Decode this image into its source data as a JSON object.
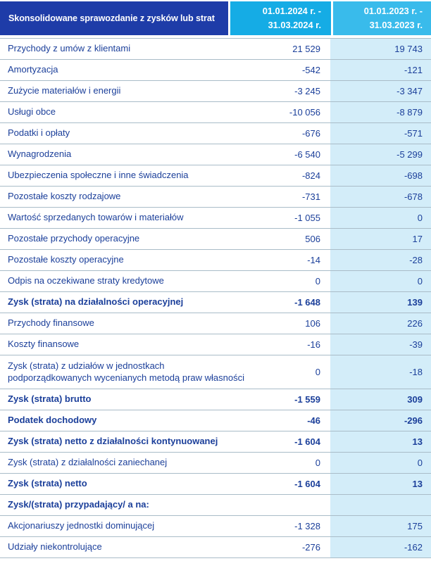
{
  "table": {
    "title": "Skonsolidowane sprawozdanie z  zysków lub strat",
    "columns": [
      {
        "name": "period-2024",
        "line1": "01.01.2024 r. -",
        "line2": "31.03.2024 r."
      },
      {
        "name": "period-2023",
        "line1": "01.01.2023 r. -",
        "line2": "31.03.2023 r."
      }
    ],
    "rows": [
      {
        "label": "Przychody z umów z klientami",
        "v2024": "21 529",
        "v2023": "19 743",
        "bold": false,
        "tall": false
      },
      {
        "label": "Amortyzacja",
        "v2024": "-542",
        "v2023": "-121",
        "bold": false,
        "tall": false
      },
      {
        "label": "Zużycie materiałów i energii",
        "v2024": "-3 245",
        "v2023": "-3 347",
        "bold": false,
        "tall": false
      },
      {
        "label": "Usługi obce",
        "v2024": "-10 056",
        "v2023": "-8 879",
        "bold": false,
        "tall": false
      },
      {
        "label": "Podatki i opłaty",
        "v2024": "-676",
        "v2023": "-571",
        "bold": false,
        "tall": false
      },
      {
        "label": "Wynagrodzenia",
        "v2024": "-6 540",
        "v2023": "-5 299",
        "bold": false,
        "tall": false
      },
      {
        "label": "Ubezpieczenia społeczne i inne świadczenia",
        "v2024": "-824",
        "v2023": "-698",
        "bold": false,
        "tall": false
      },
      {
        "label": "Pozostałe koszty rodzajowe",
        "v2024": "-731",
        "v2023": "-678",
        "bold": false,
        "tall": false
      },
      {
        "label": "Wartość sprzedanych towarów i materiałów",
        "v2024": "-1 055",
        "v2023": "0",
        "bold": false,
        "tall": false
      },
      {
        "label": "Pozostałe przychody operacyjne",
        "v2024": "506",
        "v2023": "17",
        "bold": false,
        "tall": false
      },
      {
        "label": "Pozostałe koszty operacyjne",
        "v2024": "-14",
        "v2023": "-28",
        "bold": false,
        "tall": false
      },
      {
        "label": "Odpis na oczekiwane straty kredytowe",
        "v2024": "0",
        "v2023": "0",
        "bold": false,
        "tall": false
      },
      {
        "label": "Zysk (strata) na działalności operacyjnej",
        "v2024": "-1 648",
        "v2023": "139",
        "bold": true,
        "tall": false
      },
      {
        "label": "Przychody finansowe",
        "v2024": "106",
        "v2023": "226",
        "bold": false,
        "tall": false
      },
      {
        "label": "Koszty finansowe",
        "v2024": "-16",
        "v2023": "-39",
        "bold": false,
        "tall": false
      },
      {
        "label": "Zysk (strata) z udziałów w jednostkach podporządkowanych wycenianych metodą praw własności",
        "v2024": "0",
        "v2023": "-18",
        "bold": false,
        "tall": true
      },
      {
        "label": "Zysk (strata) brutto",
        "v2024": "-1 559",
        "v2023": "309",
        "bold": true,
        "tall": false
      },
      {
        "label": "Podatek dochodowy",
        "v2024": "-46",
        "v2023": "-296",
        "bold": true,
        "tall": false
      },
      {
        "label": "Zysk (strata) netto z działalności kontynuowanej",
        "v2024": "-1 604",
        "v2023": "13",
        "bold": true,
        "tall": false
      },
      {
        "label": "Zysk (strata) z działalności zaniechanej",
        "v2024": "0",
        "v2023": "0",
        "bold": false,
        "tall": false
      },
      {
        "label": "Zysk (strata) netto",
        "v2024": "-1 604",
        "v2023": "13",
        "bold": true,
        "tall": false
      },
      {
        "label": "Zysk/(strata) przypadający/ a na:",
        "v2024": "",
        "v2023": "",
        "bold": true,
        "tall": false
      },
      {
        "label": "Akcjonariuszy jednostki dominującej",
        "v2024": "-1 328",
        "v2023": "175",
        "bold": false,
        "tall": false
      },
      {
        "label": "Udziały niekontrolujące",
        "v2024": "-276",
        "v2023": "-162",
        "bold": false,
        "tall": false
      }
    ]
  },
  "colors": {
    "header_bg": "#1e3ca8",
    "col_2024_bg": "#15ace5",
    "col_2023_bg": "#39bbeb",
    "value_col_bg": "#d3edf9",
    "text_color": "#1b3f9a",
    "separator_color": "#a9bcc8",
    "header_text": "#ffffff"
  }
}
